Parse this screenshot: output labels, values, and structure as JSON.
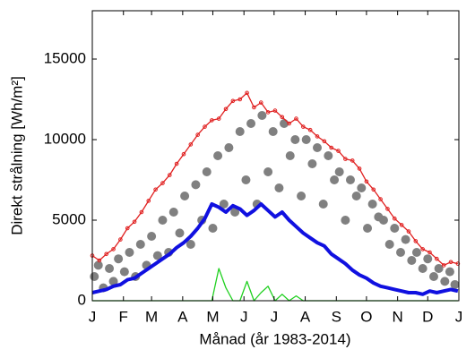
{
  "chart_data": {
    "type": "line",
    "y_label": "Direkt strålning [Wh/m²]",
    "x_label": "Månad (år 1983-2014)",
    "xlim": [
      1,
      366
    ],
    "ylim": [
      0,
      18000
    ],
    "xticks": [
      {
        "value": 1,
        "label": "J"
      },
      {
        "value": 32,
        "label": "F"
      },
      {
        "value": 60,
        "label": "M"
      },
      {
        "value": 91,
        "label": "A"
      },
      {
        "value": 121,
        "label": "M"
      },
      {
        "value": 152,
        "label": "J"
      },
      {
        "value": 182,
        "label": "J"
      },
      {
        "value": 213,
        "label": "A"
      },
      {
        "value": 244,
        "label": "S"
      },
      {
        "value": 274,
        "label": "O"
      },
      {
        "value": 305,
        "label": "N"
      },
      {
        "value": 335,
        "label": "D"
      },
      {
        "value": 366,
        "label": "J"
      }
    ],
    "yticks": [
      0,
      5000,
      10000,
      15000
    ],
    "x": [
      1,
      8,
      15,
      22,
      29,
      36,
      43,
      50,
      57,
      64,
      71,
      78,
      85,
      92,
      99,
      106,
      113,
      120,
      127,
      134,
      141,
      148,
      155,
      162,
      169,
      176,
      183,
      190,
      197,
      204,
      211,
      218,
      225,
      232,
      239,
      246,
      253,
      260,
      267,
      274,
      281,
      288,
      295,
      302,
      309,
      316,
      323,
      330,
      337,
      344,
      351,
      358,
      365
    ],
    "series": [
      {
        "type": "scatter",
        "color": "#808080",
        "x": [
          3,
          7,
          12,
          18,
          22,
          27,
          33,
          38,
          44,
          49,
          55,
          60,
          66,
          71,
          77,
          82,
          88,
          93,
          99,
          104,
          110,
          115,
          121,
          126,
          132,
          137,
          143,
          148,
          154,
          159,
          165,
          170,
          176,
          181,
          187,
          192,
          198,
          203,
          209,
          214,
          220,
          225,
          231,
          236,
          242,
          247,
          253,
          258,
          264,
          269,
          275,
          280,
          286,
          291,
          297,
          302,
          308,
          313,
          319,
          324,
          330,
          335,
          341,
          346,
          352,
          357,
          362
        ],
        "values": [
          1500,
          2200,
          800,
          2000,
          1200,
          2600,
          1800,
          3000,
          1500,
          3500,
          2200,
          4000,
          2800,
          5000,
          3000,
          5500,
          4200,
          6500,
          3500,
          7200,
          5000,
          8000,
          4500,
          9000,
          6000,
          9500,
          5500,
          10500,
          7500,
          11000,
          6000,
          11500,
          8000,
          10500,
          7000,
          11000,
          9000,
          10000,
          6500,
          10000,
          8500,
          9500,
          6000,
          9000,
          7500,
          8000,
          5000,
          7500,
          6500,
          7000,
          4500,
          6000,
          5200,
          5000,
          3500,
          4500,
          3000,
          3800,
          2500,
          3000,
          2000,
          2600,
          1500,
          2000,
          1200,
          1800,
          1000
        ]
      },
      {
        "type": "line",
        "color": "#e02020",
        "markers": true,
        "values": [
          2800,
          2500,
          2900,
          3200,
          3800,
          4500,
          4900,
          5500,
          6200,
          6900,
          7300,
          7800,
          8500,
          9100,
          9700,
          10300,
          10800,
          11200,
          11300,
          11900,
          12400,
          12500,
          12900,
          12000,
          12300,
          11700,
          11800,
          11400,
          11000,
          11300,
          10800,
          10600,
          10200,
          9900,
          9500,
          9300,
          8800,
          8700,
          8200,
          7400,
          6900,
          6300,
          5700,
          5100,
          4700,
          4300,
          3700,
          3200,
          3000,
          2600,
          2200,
          2400,
          2300
        ]
      },
      {
        "type": "line",
        "color": "#1010e0",
        "width": 4,
        "values": [
          500,
          600,
          700,
          900,
          1000,
          1300,
          1400,
          1700,
          2000,
          2300,
          2600,
          2900,
          3300,
          3600,
          4000,
          4500,
          5100,
          6000,
          5800,
          5500,
          5900,
          5700,
          5300,
          5600,
          6000,
          5600,
          5200,
          5500,
          5000,
          4600,
          4200,
          3900,
          3600,
          3400,
          2900,
          2600,
          2300,
          1900,
          1600,
          1400,
          1100,
          900,
          800,
          700,
          600,
          500,
          500,
          400,
          600,
          500,
          600,
          700,
          600
        ]
      },
      {
        "type": "line",
        "color": "#20d020",
        "values": [
          0,
          0,
          0,
          0,
          0,
          0,
          0,
          0,
          0,
          0,
          0,
          0,
          0,
          0,
          0,
          0,
          0,
          0,
          2000,
          800,
          0,
          0,
          1200,
          0,
          500,
          900,
          0,
          400,
          0,
          300,
          0,
          0,
          0,
          0,
          0,
          0,
          0,
          0,
          0,
          0,
          0,
          0,
          0,
          0,
          0,
          0,
          0,
          0,
          0,
          0,
          0,
          0,
          0
        ]
      }
    ]
  }
}
